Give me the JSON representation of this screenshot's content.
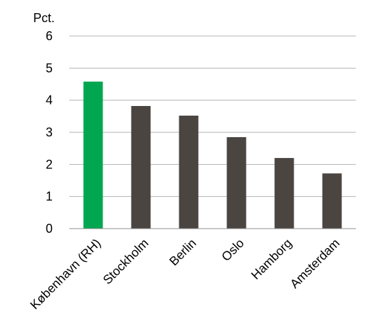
{
  "chart_data": {
    "type": "bar",
    "ylabel": "Pct.",
    "categories": [
      "København (RH)",
      "Stockholm",
      "Berlin",
      "Oslo",
      "Hamborg",
      "Amsterdam"
    ],
    "values": [
      4.58,
      3.82,
      3.52,
      2.85,
      2.2,
      1.72
    ],
    "ylim": [
      0,
      6
    ],
    "yticks": [
      0,
      1,
      2,
      3,
      4,
      5,
      6
    ],
    "grid": true,
    "legend": "none",
    "colors": {
      "highlight": "#00a650",
      "default": "#4a4541"
    },
    "highlight_index": 0
  }
}
